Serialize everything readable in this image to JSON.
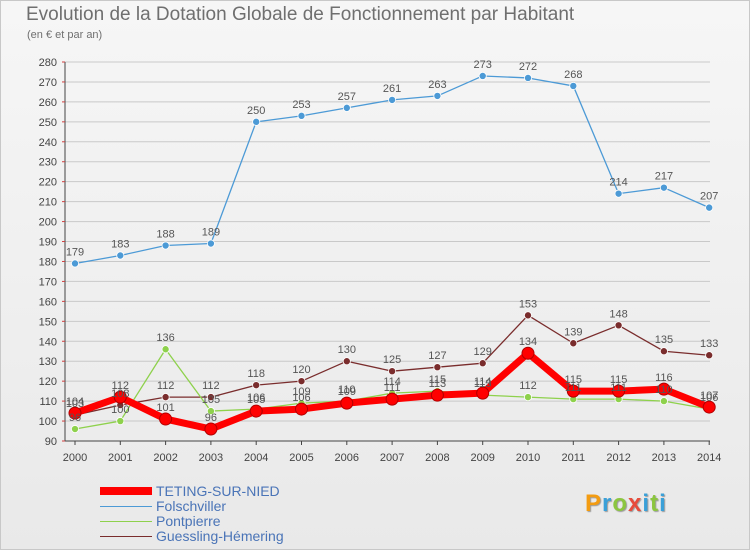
{
  "header": {
    "title": "Evolution de la Dotation Globale de Fonctionnement par Habitant",
    "subtitle": "(en € et par an)"
  },
  "logo": {
    "text": "Proxiti"
  },
  "colors": {
    "grid": "#c9c9c9",
    "axis": "#444444",
    "legend_text": "#4a74b7"
  },
  "chart_data": {
    "type": "line",
    "title": "Evolution de la Dotation Globale de Fonctionnement par Habitant",
    "subtitle": "(en € et par an)",
    "xlabel": "",
    "ylabel": "",
    "x": [
      "2000",
      "2001",
      "2002",
      "2003",
      "2004",
      "2005",
      "2006",
      "2007",
      "2008",
      "2009",
      "2010",
      "2011",
      "2012",
      "2013",
      "2014"
    ],
    "ylim": [
      90,
      280
    ],
    "yticks": [
      90,
      100,
      110,
      120,
      130,
      140,
      150,
      160,
      170,
      180,
      190,
      200,
      210,
      220,
      230,
      240,
      250,
      260,
      270,
      280
    ],
    "grid": "horizontal",
    "legend_position": "bottom-left",
    "series": [
      {
        "name": "Guessling-Hémering",
        "color": "#7a2d2d",
        "values": [
          103,
          108,
          112,
          112,
          118,
          120,
          130,
          125,
          127,
          129,
          153,
          139,
          148,
          135,
          133
        ],
        "labels": [
          "103",
          "108",
          "112",
          "112",
          "118",
          "120",
          "130",
          "125",
          "127",
          "129",
          "153",
          "139",
          "148",
          "135",
          "133"
        ]
      },
      {
        "name": "Pontpierre",
        "color": "#8ed14c",
        "values": [
          96,
          100,
          136,
          105,
          106,
          109,
          110,
          114,
          115,
          113,
          112,
          111,
          111,
          110,
          106
        ],
        "labels": [
          "96",
          "100",
          "136",
          "105",
          "106",
          "109",
          "110",
          "114",
          "115",
          "113",
          "112",
          "111",
          "111",
          "110",
          "106"
        ]
      },
      {
        "name": "Folschviller",
        "color": "#4c9ad6",
        "values": [
          179,
          183,
          188,
          189,
          250,
          253,
          257,
          261,
          263,
          273,
          272,
          268,
          214,
          217,
          207
        ],
        "labels": [
          "179",
          "183",
          "188",
          "189",
          "250",
          "253",
          "257",
          "261",
          "263",
          "273",
          "272",
          "268",
          "214",
          "217",
          "207"
        ]
      },
      {
        "name": "TETING-SUR-NIED",
        "color": "#ff0000",
        "values": [
          104,
          112,
          101,
          96,
          105,
          106,
          109,
          111,
          113,
          114,
          134,
          115,
          115,
          116,
          107
        ],
        "labels": [
          "104",
          "112",
          "101",
          "96",
          "105",
          "106",
          "109",
          "111",
          "113",
          "114",
          "134",
          "115",
          "115",
          "116",
          "107"
        ]
      }
    ]
  },
  "legend": [
    {
      "label": "TETING-SUR-NIED",
      "color": "#ff0000",
      "thickness": 8
    },
    {
      "label": "Folschviller",
      "color": "#4c9ad6",
      "thickness": 1
    },
    {
      "label": "Pontpierre",
      "color": "#8ed14c",
      "thickness": 1
    },
    {
      "label": "Guessling-Hémering",
      "color": "#7a2d2d",
      "thickness": 1
    }
  ]
}
